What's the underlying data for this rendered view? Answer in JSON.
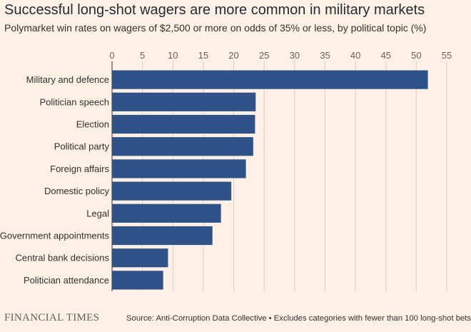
{
  "chart_data": {
    "type": "bar",
    "orientation": "horizontal",
    "title": "Successful long-shot wagers are more common in military markets",
    "subtitle": "Polymarket win rates on wagers of $2,500 or more on odds of 35% or less, by political topic (%)",
    "categories": [
      "Military and defence",
      "Politician speech",
      "Election",
      "Political party",
      "Foreign affairs",
      "Domestic policy",
      "Legal",
      "Government appointments",
      "Central bank decisions",
      "Politician attendance"
    ],
    "values": [
      51.9,
      23.6,
      23.5,
      23.2,
      22.0,
      19.6,
      17.9,
      16.5,
      9.2,
      8.4
    ],
    "xlim": [
      0,
      55
    ],
    "ticks": [
      0,
      5,
      10,
      15,
      20,
      25,
      30,
      35,
      40,
      45,
      50,
      55
    ],
    "grid": true,
    "legend": "none",
    "bar_color": "#2f5289",
    "grid_color": "#d9cfc5"
  },
  "footer": {
    "brand": "FINANCIAL TIMES",
    "source": "Source: Anti-Corruption Data Collective • Excludes categories with fewer than 100 long-shot bets"
  }
}
